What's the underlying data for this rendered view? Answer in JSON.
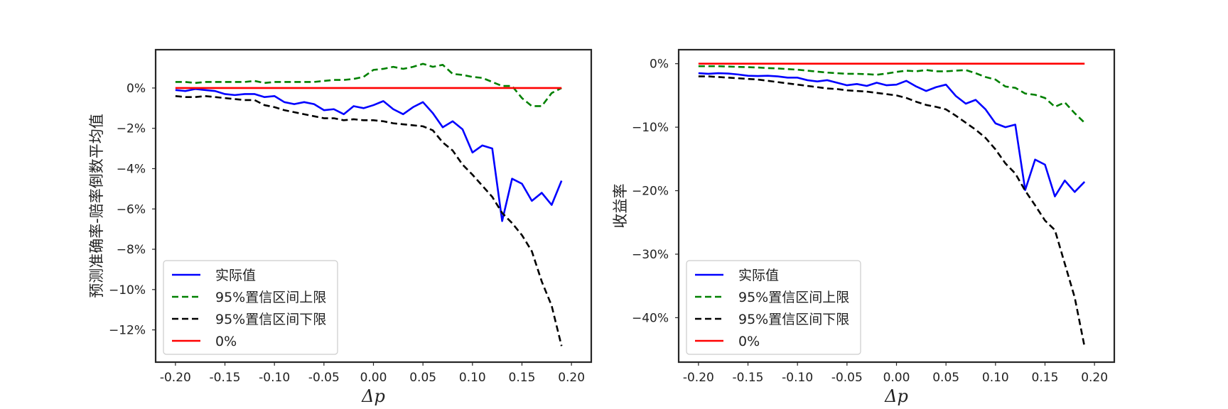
{
  "chart_data": [
    {
      "type": "line",
      "xlabel": "Δp",
      "ylabel": "预测准确率-赔率倒数平均值",
      "xlim": [
        -0.22,
        0.22
      ],
      "ylim": [
        -13.6,
        1.9
      ],
      "x_ticks": [
        -0.2,
        -0.15,
        -0.1,
        -0.05,
        0.0,
        0.05,
        0.1,
        0.15,
        0.2
      ],
      "x_tick_labels": [
        "-0.20",
        "-0.15",
        "-0.10",
        "-0.05",
        "0.00",
        "0.05",
        "0.10",
        "0.15",
        "0.20"
      ],
      "y_ticks": [
        0,
        -2,
        -4,
        -6,
        -8,
        -10,
        -12
      ],
      "y_tick_labels": [
        "0%",
        "−2%",
        "−4%",
        "−6%",
        "−8%",
        "−10%",
        "−12%"
      ],
      "y_unit": "%",
      "grid": false,
      "legend_position": "lower-left",
      "x": [
        -0.2,
        -0.19,
        -0.18,
        -0.17,
        -0.16,
        -0.15,
        -0.14,
        -0.13,
        -0.12,
        -0.11,
        -0.1,
        -0.09,
        -0.08,
        -0.07,
        -0.06,
        -0.05,
        -0.04,
        -0.03,
        -0.02,
        -0.01,
        0.0,
        0.01,
        0.02,
        0.03,
        0.04,
        0.05,
        0.06,
        0.07,
        0.08,
        0.09,
        0.1,
        0.11,
        0.12,
        0.13,
        0.14,
        0.15,
        0.16,
        0.17,
        0.18,
        0.19
      ],
      "series": [
        {
          "name": "实际值",
          "color": "#0000ff",
          "dash": "solid",
          "values": [
            -0.1,
            -0.15,
            -0.05,
            -0.1,
            -0.15,
            -0.3,
            -0.35,
            -0.3,
            -0.3,
            -0.45,
            -0.4,
            -0.7,
            -0.8,
            -0.7,
            -0.8,
            -1.1,
            -1.05,
            -1.3,
            -0.9,
            -1.0,
            -0.85,
            -0.65,
            -1.05,
            -1.3,
            -0.95,
            -0.7,
            -1.25,
            -1.95,
            -1.65,
            -2.05,
            -3.2,
            -2.85,
            -3.0,
            -6.6,
            -4.5,
            -4.75,
            -5.6,
            -5.2,
            -5.8,
            -4.6
          ]
        },
        {
          "name": "95%置信区间上限",
          "color": "#008000",
          "dash": "dashed",
          "values": [
            0.3,
            0.3,
            0.25,
            0.3,
            0.3,
            0.3,
            0.3,
            0.3,
            0.35,
            0.25,
            0.3,
            0.3,
            0.3,
            0.3,
            0.3,
            0.35,
            0.4,
            0.4,
            0.45,
            0.55,
            0.9,
            0.95,
            1.05,
            0.95,
            1.05,
            1.2,
            1.05,
            1.15,
            0.7,
            0.65,
            0.55,
            0.5,
            0.3,
            0.1,
            0.1,
            -0.5,
            -0.9,
            -0.9,
            -0.25,
            0.0
          ]
        },
        {
          "name": "95%置信区间下限",
          "color": "#000000",
          "dash": "dashed",
          "values": [
            -0.4,
            -0.45,
            -0.45,
            -0.4,
            -0.45,
            -0.5,
            -0.55,
            -0.6,
            -0.6,
            -0.85,
            -0.95,
            -1.1,
            -1.2,
            -1.3,
            -1.4,
            -1.5,
            -1.5,
            -1.6,
            -1.55,
            -1.6,
            -1.6,
            -1.65,
            -1.75,
            -1.8,
            -1.85,
            -1.9,
            -2.1,
            -2.7,
            -3.1,
            -3.8,
            -4.3,
            -4.85,
            -5.4,
            -6.2,
            -6.7,
            -7.3,
            -8.1,
            -9.6,
            -10.8,
            -12.8
          ]
        },
        {
          "name": "0%",
          "color": "#ff0000",
          "dash": "solid",
          "values": [
            0,
            0,
            0,
            0,
            0,
            0,
            0,
            0,
            0,
            0,
            0,
            0,
            0,
            0,
            0,
            0,
            0,
            0,
            0,
            0,
            0,
            0,
            0,
            0,
            0,
            0,
            0,
            0,
            0,
            0,
            0,
            0,
            0,
            0,
            0,
            0,
            0,
            0,
            0,
            0
          ]
        }
      ]
    },
    {
      "type": "line",
      "xlabel": "Δp",
      "ylabel": "收益率",
      "xlim": [
        -0.22,
        0.22
      ],
      "ylim": [
        -47,
        2.2
      ],
      "x_ticks": [
        -0.2,
        -0.15,
        -0.1,
        -0.05,
        0.0,
        0.05,
        0.1,
        0.15,
        0.2
      ],
      "x_tick_labels": [
        "-0.20",
        "-0.15",
        "-0.10",
        "-0.05",
        "0.00",
        "0.05",
        "0.10",
        "0.15",
        "0.20"
      ],
      "y_ticks": [
        0,
        -10,
        -20,
        -30,
        -40
      ],
      "y_tick_labels": [
        "0%",
        "−10%",
        "−20%",
        "−30%",
        "−40%"
      ],
      "y_unit": "%",
      "grid": false,
      "legend_position": "lower-left",
      "x": [
        -0.2,
        -0.19,
        -0.18,
        -0.17,
        -0.16,
        -0.15,
        -0.14,
        -0.13,
        -0.12,
        -0.11,
        -0.1,
        -0.09,
        -0.08,
        -0.07,
        -0.06,
        -0.05,
        -0.04,
        -0.03,
        -0.02,
        -0.01,
        0.0,
        0.01,
        0.02,
        0.03,
        0.04,
        0.05,
        0.06,
        0.07,
        0.08,
        0.09,
        0.1,
        0.11,
        0.12,
        0.13,
        0.14,
        0.15,
        0.16,
        0.17,
        0.18,
        0.19
      ],
      "series": [
        {
          "name": "实际值",
          "color": "#0000ff",
          "dash": "solid",
          "values": [
            -1.5,
            -1.6,
            -1.5,
            -1.55,
            -1.7,
            -1.9,
            -1.95,
            -1.9,
            -2.0,
            -2.2,
            -2.2,
            -2.6,
            -2.8,
            -2.6,
            -3.0,
            -3.4,
            -3.2,
            -3.5,
            -3.0,
            -3.4,
            -3.3,
            -2.7,
            -3.6,
            -4.3,
            -3.7,
            -3.3,
            -5.1,
            -6.3,
            -5.7,
            -7.2,
            -9.4,
            -10.0,
            -9.6,
            -19.9,
            -15.1,
            -15.9,
            -20.9,
            -18.4,
            -20.2,
            -18.6
          ]
        },
        {
          "name": "95%置信区间上限",
          "color": "#008000",
          "dash": "dashed",
          "values": [
            -0.4,
            -0.4,
            -0.4,
            -0.45,
            -0.5,
            -0.55,
            -0.6,
            -0.7,
            -0.75,
            -0.85,
            -0.95,
            -1.1,
            -1.25,
            -1.4,
            -1.5,
            -1.6,
            -1.6,
            -1.65,
            -1.75,
            -1.55,
            -1.3,
            -1.1,
            -1.2,
            -1.0,
            -1.2,
            -1.2,
            -1.1,
            -1.0,
            -1.5,
            -2.1,
            -2.5,
            -3.6,
            -3.8,
            -4.7,
            -4.9,
            -5.4,
            -6.8,
            -6.1,
            -7.8,
            -9.3
          ]
        },
        {
          "name": "95%置信区间下限",
          "color": "#000000",
          "dash": "dashed",
          "values": [
            -2.0,
            -2.0,
            -2.1,
            -2.2,
            -2.3,
            -2.4,
            -2.5,
            -2.7,
            -2.9,
            -3.1,
            -3.3,
            -3.5,
            -3.7,
            -3.9,
            -4.0,
            -4.2,
            -4.3,
            -4.4,
            -4.6,
            -4.8,
            -5.0,
            -5.4,
            -6.0,
            -6.5,
            -6.8,
            -7.2,
            -8.2,
            -9.3,
            -10.4,
            -11.7,
            -13.5,
            -15.7,
            -17.3,
            -20.0,
            -22.3,
            -24.7,
            -26.2,
            -31.5,
            -36.8,
            -44.6
          ]
        },
        {
          "name": "0%",
          "color": "#ff0000",
          "dash": "solid",
          "values": [
            0,
            0,
            0,
            0,
            0,
            0,
            0,
            0,
            0,
            0,
            0,
            0,
            0,
            0,
            0,
            0,
            0,
            0,
            0,
            0,
            0,
            0,
            0,
            0,
            0,
            0,
            0,
            0,
            0,
            0,
            0,
            0,
            0,
            0,
            0,
            0,
            0,
            0,
            0,
            0
          ]
        }
      ]
    }
  ]
}
